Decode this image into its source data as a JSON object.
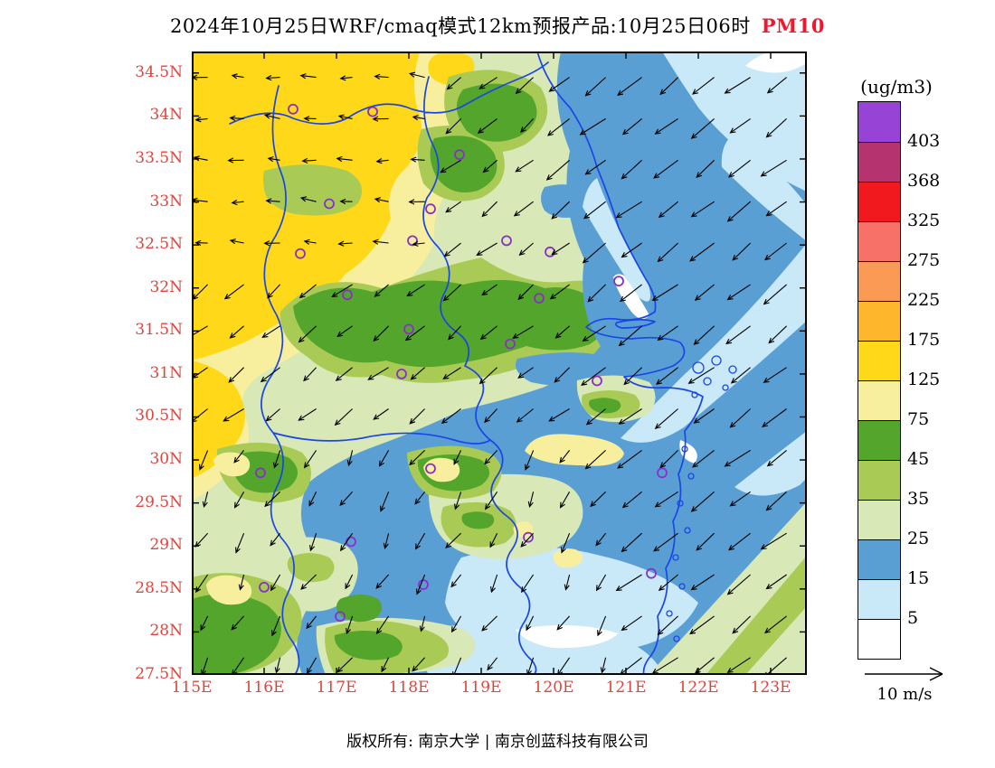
{
  "title": {
    "text": "2024年10月25日WRF/cmaq模式12km预报产品:10月25日06时",
    "pollutant": "PM10"
  },
  "footer": {
    "text": "版权所有: 南京大学 | 南京创蓝科技有限公司"
  },
  "colors": {
    "axis_label": "#e0443c",
    "pollutant": "#f01830",
    "boundary": "#1b46e6",
    "station": "#8b2fc9",
    "arrow": "#000000"
  },
  "axes": {
    "lat_ticks": [
      {
        "value": 34.5,
        "label": "34.5N"
      },
      {
        "value": 34,
        "label": "34N"
      },
      {
        "value": 33.5,
        "label": "33.5N"
      },
      {
        "value": 33,
        "label": "33N"
      },
      {
        "value": 32.5,
        "label": "32.5N"
      },
      {
        "value": 32,
        "label": "32N"
      },
      {
        "value": 31.5,
        "label": "31.5N"
      },
      {
        "value": 31,
        "label": "31N"
      },
      {
        "value": 30.5,
        "label": "30.5N"
      },
      {
        "value": 30,
        "label": "30N"
      },
      {
        "value": 29.5,
        "label": "29.5N"
      },
      {
        "value": 29,
        "label": "29N"
      },
      {
        "value": 28.5,
        "label": "28.5N"
      },
      {
        "value": 28,
        "label": "28N"
      },
      {
        "value": 27.5,
        "label": "27.5N"
      }
    ],
    "lon_ticks": [
      {
        "value": 115,
        "label": "115E"
      },
      {
        "value": 116,
        "label": "116E"
      },
      {
        "value": 117,
        "label": "117E"
      },
      {
        "value": 118,
        "label": "118E"
      },
      {
        "value": 119,
        "label": "119E"
      },
      {
        "value": 120,
        "label": "120E"
      },
      {
        "value": 121,
        "label": "121E"
      },
      {
        "value": 122,
        "label": "122E"
      },
      {
        "value": 123,
        "label": "123E"
      }
    ]
  },
  "legend": {
    "unit": "(ug/m3)",
    "levels": [
      "403",
      "368",
      "325",
      "275",
      "225",
      "175",
      "125",
      "75",
      "45",
      "35",
      "25",
      "15",
      "5"
    ],
    "colors": [
      "#9643d6",
      "#b5336e",
      "#f2191e",
      "#f87168",
      "#fb9a55",
      "#feb62c",
      "#ffd919",
      "#f8ef9e",
      "#53a52c",
      "#a9cb55",
      "#d8e8b6",
      "#5a9fd4",
      "#c9e8f8",
      "#ffffff"
    ]
  },
  "wind_scale": {
    "label": "10 m/s"
  },
  "chart_data": {
    "type": "heatmap",
    "variable": "PM10",
    "unit": "ug/m3",
    "model": "WRF/cmaq 12km",
    "valid_time": "2024年10月25日06时",
    "extent": {
      "lon": [
        115,
        123.5
      ],
      "lat": [
        27.5,
        34.75
      ]
    },
    "contour_levels": [
      5,
      15,
      25,
      35,
      45,
      75,
      125,
      175,
      225,
      275,
      325,
      368,
      403
    ],
    "palette_top_to_bottom": [
      "#9643d6",
      "#b5336e",
      "#f2191e",
      "#f87168",
      "#fb9a55",
      "#feb62c",
      "#ffd919",
      "#f8ef9e",
      "#53a52c",
      "#a9cb55",
      "#d8e8b6",
      "#5a9fd4",
      "#c9e8f8",
      "#ffffff"
    ],
    "field_summary": [
      {
        "area": "northwest (115-118E, 32-34.5N)",
        "pm10": "75-175 (yellow)"
      },
      {
        "area": "central belt (116-121E, 31-32.6N)",
        "pm10": "35-75 (green)"
      },
      {
        "area": "north-central patches (118-120E, 33-34.5N)",
        "pm10": "25-75"
      },
      {
        "area": "eastern offshore (120-123.5E)",
        "pm10": "5-25 (blue/white)"
      },
      {
        "area": "southern inland (116-120E, 27.5-30.5N)",
        "pm10": "5-45 mixed"
      },
      {
        "area": "southeast offshore wedge (121-123.5E, 27.5-29.5N)",
        "pm10": "25-45"
      }
    ],
    "stations_lonlat": [
      [
        116.4,
        34.08
      ],
      [
        117.5,
        34.05
      ],
      [
        118.7,
        33.55
      ],
      [
        116.9,
        32.98
      ],
      [
        118.3,
        32.92
      ],
      [
        116.5,
        32.4
      ],
      [
        118.05,
        32.55
      ],
      [
        119.35,
        32.55
      ],
      [
        119.95,
        32.42
      ],
      [
        120.9,
        32.08
      ],
      [
        117.15,
        31.92
      ],
      [
        119.8,
        31.88
      ],
      [
        118.0,
        31.52
      ],
      [
        119.4,
        31.35
      ],
      [
        117.9,
        31.0
      ],
      [
        120.6,
        30.92
      ],
      [
        115.95,
        29.85
      ],
      [
        118.3,
        29.9
      ],
      [
        121.5,
        29.85
      ],
      [
        117.2,
        29.05
      ],
      [
        119.65,
        29.1
      ],
      [
        116.0,
        28.52
      ],
      [
        121.35,
        28.68
      ],
      [
        117.05,
        28.18
      ],
      [
        118.2,
        28.55
      ]
    ],
    "wind": {
      "reference_speed": 10,
      "unit": "m/s",
      "dominant": "northeasterly onshore flow east/offshore, weak westerly over northwest"
    }
  }
}
